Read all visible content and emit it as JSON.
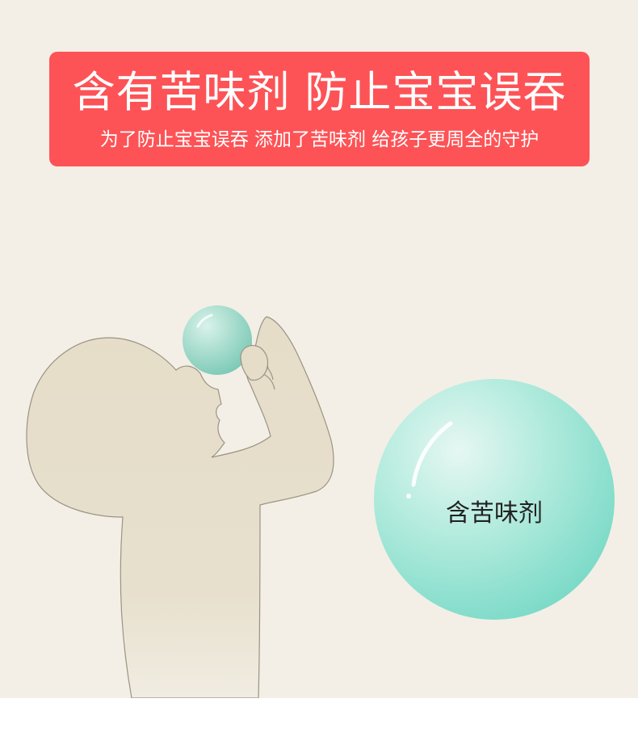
{
  "banner": {
    "title": "含有苦味剂 防止宝宝误吞",
    "subtitle": "为了防止宝宝误吞 添加了苦味剂 给孩子更周全的守护",
    "color": "#fd5356"
  },
  "illustration": {
    "ball_label": "含苦味剂",
    "ball_color": "#80dccb",
    "figure_color": "#e5ddc8",
    "background_color": "#f3efe6"
  }
}
